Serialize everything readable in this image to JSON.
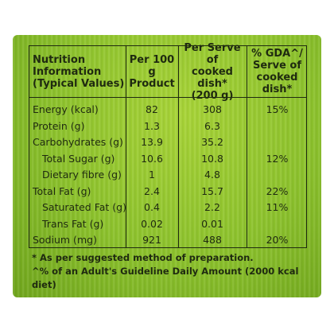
{
  "header": {
    "col1": "Nutrition\nInformation\n(Typical Values)",
    "col2": "Per 100 g\nProduct",
    "col3": "Per Serve of\ncooked dish*\n(200 g)",
    "col4": "% GDA^/\nServe of\ncooked dish*"
  },
  "rows": [
    {
      "name": "Energy (kcal)",
      "per100": "82",
      "perServe": "308",
      "gda": "15%"
    },
    {
      "name": "Protein (g)",
      "per100": "1.3",
      "perServe": "6.3",
      "gda": ""
    },
    {
      "name": "Carbohydrates (g)",
      "per100": "13.9",
      "perServe": "35.2",
      "gda": ""
    },
    {
      "name": "Total Sugar (g)",
      "per100": "10.6",
      "perServe": "10.8",
      "gda": "12%"
    },
    {
      "name": "Dietary fibre (g)",
      "per100": "1",
      "perServe": "4.8",
      "gda": ""
    },
    {
      "name": "Total Fat (g)",
      "per100": "2.4",
      "perServe": "15.7",
      "gda": "22%"
    },
    {
      "name": "Saturated Fat (g)",
      "per100": "0.4",
      "perServe": "2.2",
      "gda": "11%"
    },
    {
      "name": "Trans Fat (g)",
      "per100": "0.02",
      "perServe": "0.01",
      "gda": ""
    },
    {
      "name": "Sodium (mg)",
      "per100": "921",
      "perServe": "488",
      "gda": "20%"
    }
  ],
  "notes": {
    "line1": "* As per suggested method of preparation.",
    "line2": "^% of an Adult's Guideline Daily Amount (2000 kcal diet)"
  },
  "colors": {
    "panel": "#8cc22c",
    "ink": "#1f2a10"
  }
}
